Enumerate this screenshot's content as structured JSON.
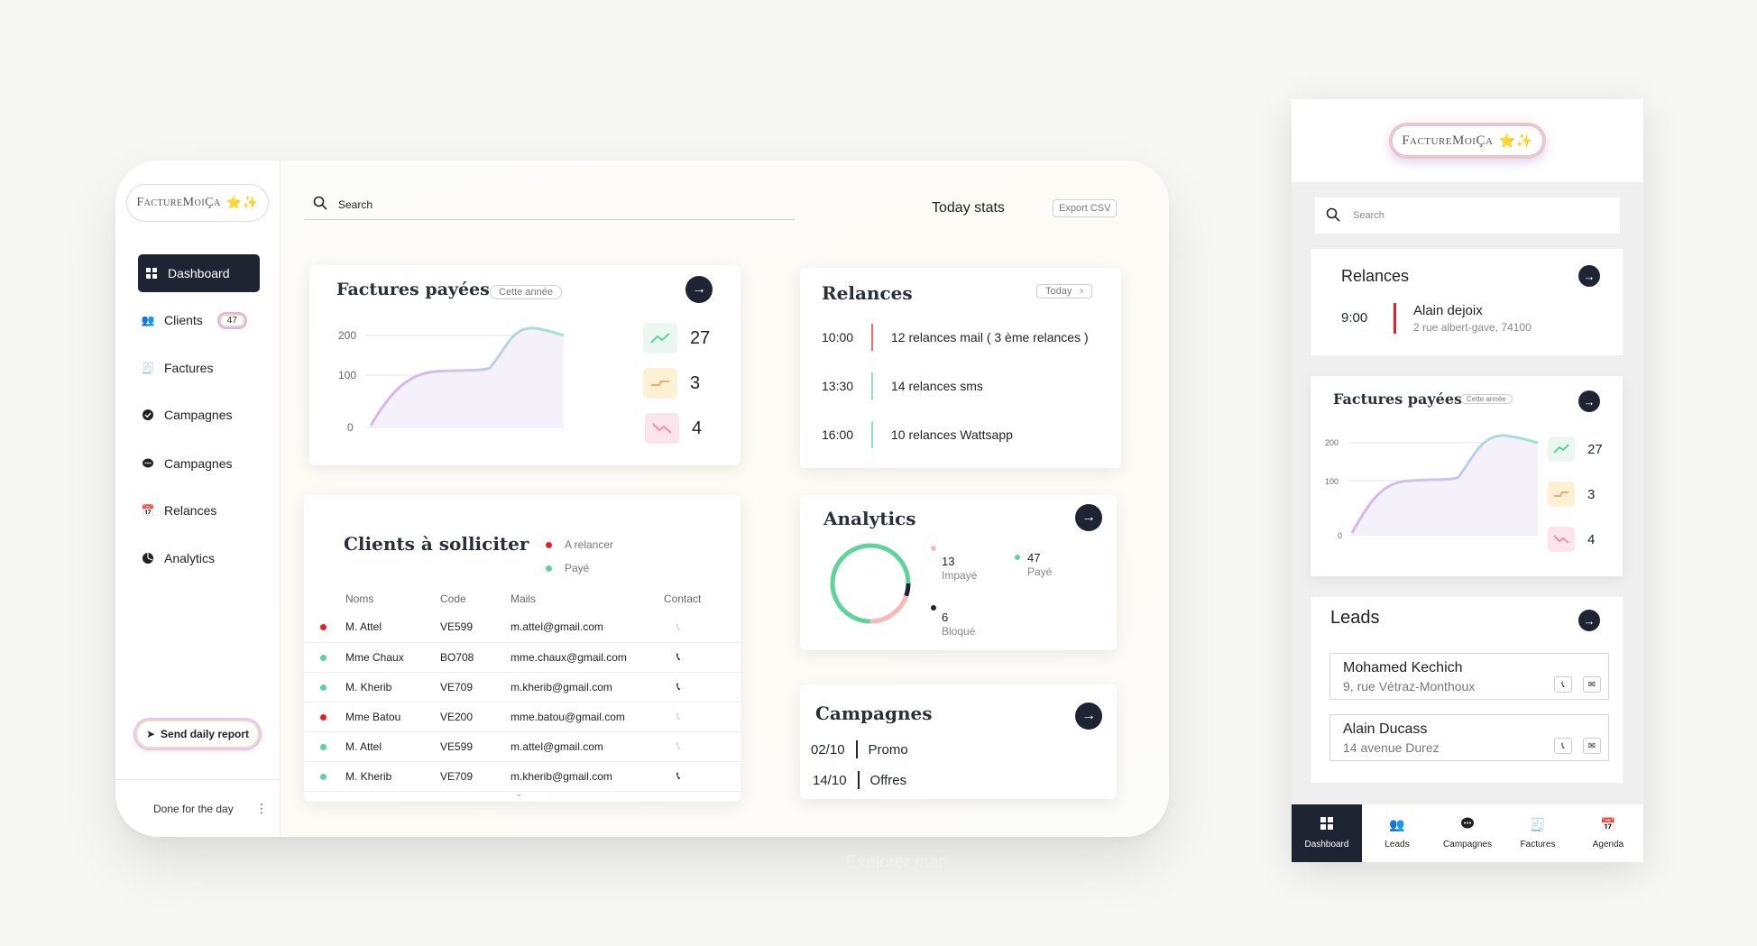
{
  "brand": {
    "name": "FactureMoiÇa",
    "stars": "⭐✨"
  },
  "sidebar": {
    "items": [
      {
        "label": "Dashboard",
        "icon": "grid-icon"
      },
      {
        "label": "Clients",
        "icon": "users-icon",
        "badge": "47"
      },
      {
        "label": "Factures",
        "icon": "invoice-icon"
      },
      {
        "label": "Campagnes",
        "icon": "check-circle-icon"
      },
      {
        "label": "Campagnes",
        "icon": "chat-icon"
      },
      {
        "label": "Relances",
        "icon": "calendar-icon"
      },
      {
        "label": "Analytics",
        "icon": "pie-icon"
      }
    ],
    "report_button": "Send daily report",
    "footer_text": "Done for the day",
    "footer_menu": "⋮"
  },
  "header": {
    "search_placeholder": "Search",
    "today_stats": "Today stats",
    "export": "Export CSV"
  },
  "factures": {
    "title": "Factures payées",
    "chip": "Cette année",
    "y_ticks": [
      "200",
      "100",
      "0"
    ],
    "stats": [
      {
        "value": "27",
        "kind": "up",
        "color": "#5fd39b"
      },
      {
        "value": "3",
        "kind": "flat",
        "color": "#f0a87d"
      },
      {
        "value": "4",
        "kind": "down",
        "color": "#ef8fb0"
      }
    ]
  },
  "relances": {
    "title": "Relances",
    "chip": "Today",
    "rows": [
      {
        "time": "10:00",
        "text": "12 relances mail ( 3 ème relances )",
        "color": "#ef6b6b"
      },
      {
        "time": "13:30",
        "text": "14 relances sms",
        "color": "#8de0c3"
      },
      {
        "time": "16:00",
        "text": "10 relances Wattsapp",
        "color": "#8de0c3"
      }
    ]
  },
  "clients": {
    "title": "Clients à solliciter",
    "legend": [
      {
        "label": "A relancer",
        "color": "#e5202a"
      },
      {
        "label": "Payé",
        "color": "#5fd39b"
      }
    ],
    "columns": [
      "Noms",
      "Code",
      "Mails",
      "Contact"
    ],
    "rows": [
      {
        "status": "#e5202a",
        "name": "M. Attel",
        "code": "VE599",
        "mail": "m.attel@gmail.com",
        "phone_active": false
      },
      {
        "status": "#5fd39b",
        "name": "Mme Chaux",
        "code": "BO708",
        "mail": "mme.chaux@gmail.com",
        "phone_active": true
      },
      {
        "status": "#5fd39b",
        "name": "M. Kherib",
        "code": "VE709",
        "mail": "m.kherib@gmail.com",
        "phone_active": true
      },
      {
        "status": "#e5202a",
        "name": "Mme Batou",
        "code": "VE200",
        "mail": "mme.batou@gmail.com",
        "phone_active": false
      },
      {
        "status": "#5fd39b",
        "name": "M. Attel",
        "code": "VE599",
        "mail": "m.attel@gmail.com",
        "phone_active": false
      },
      {
        "status": "#5fd39b",
        "name": "M. Kherib",
        "code": "VE709",
        "mail": "m.kherib@gmail.com",
        "phone_active": true
      }
    ]
  },
  "analytics": {
    "title": "Analytics",
    "items": [
      {
        "value": "13",
        "label": "Impayé",
        "color": "#f8b9b9"
      },
      {
        "value": "47",
        "label": "Payé",
        "color": "#5fd39b"
      },
      {
        "value": "6",
        "label": "Bloqué",
        "color": "#1e2431"
      }
    ]
  },
  "campagnes": {
    "title": "Campagnes",
    "rows": [
      {
        "date": "02/10",
        "label": "Promo"
      },
      {
        "date": "14/10",
        "label": "Offres"
      }
    ]
  },
  "footer_link": "Explorer map",
  "mobile": {
    "search_placeholder": "Search",
    "relances": {
      "title": "Relances",
      "time": "9:00",
      "name": "Alain dejoix",
      "address": "2 rue albert-gave, 74100"
    },
    "factures": {
      "title": "Factures payées",
      "chip": "Cette année",
      "y_ticks": [
        "200",
        "100",
        "0"
      ],
      "stats": [
        "27",
        "3",
        "4"
      ]
    },
    "leads": {
      "title": "Leads",
      "items": [
        {
          "name": "Mohamed Kechich",
          "address": "9, rue Vétraz-Monthoux"
        },
        {
          "name": "Alain Ducass",
          "address": "14 avenue Durez"
        }
      ]
    },
    "tabs": [
      {
        "label": "Dashboard",
        "icon": "grid-icon"
      },
      {
        "label": "Leads",
        "icon": "users-icon"
      },
      {
        "label": "Campagnes",
        "icon": "chat-icon"
      },
      {
        "label": "Factures",
        "icon": "invoice-icon"
      },
      {
        "label": "Agenda",
        "icon": "calendar-icon"
      }
    ]
  }
}
